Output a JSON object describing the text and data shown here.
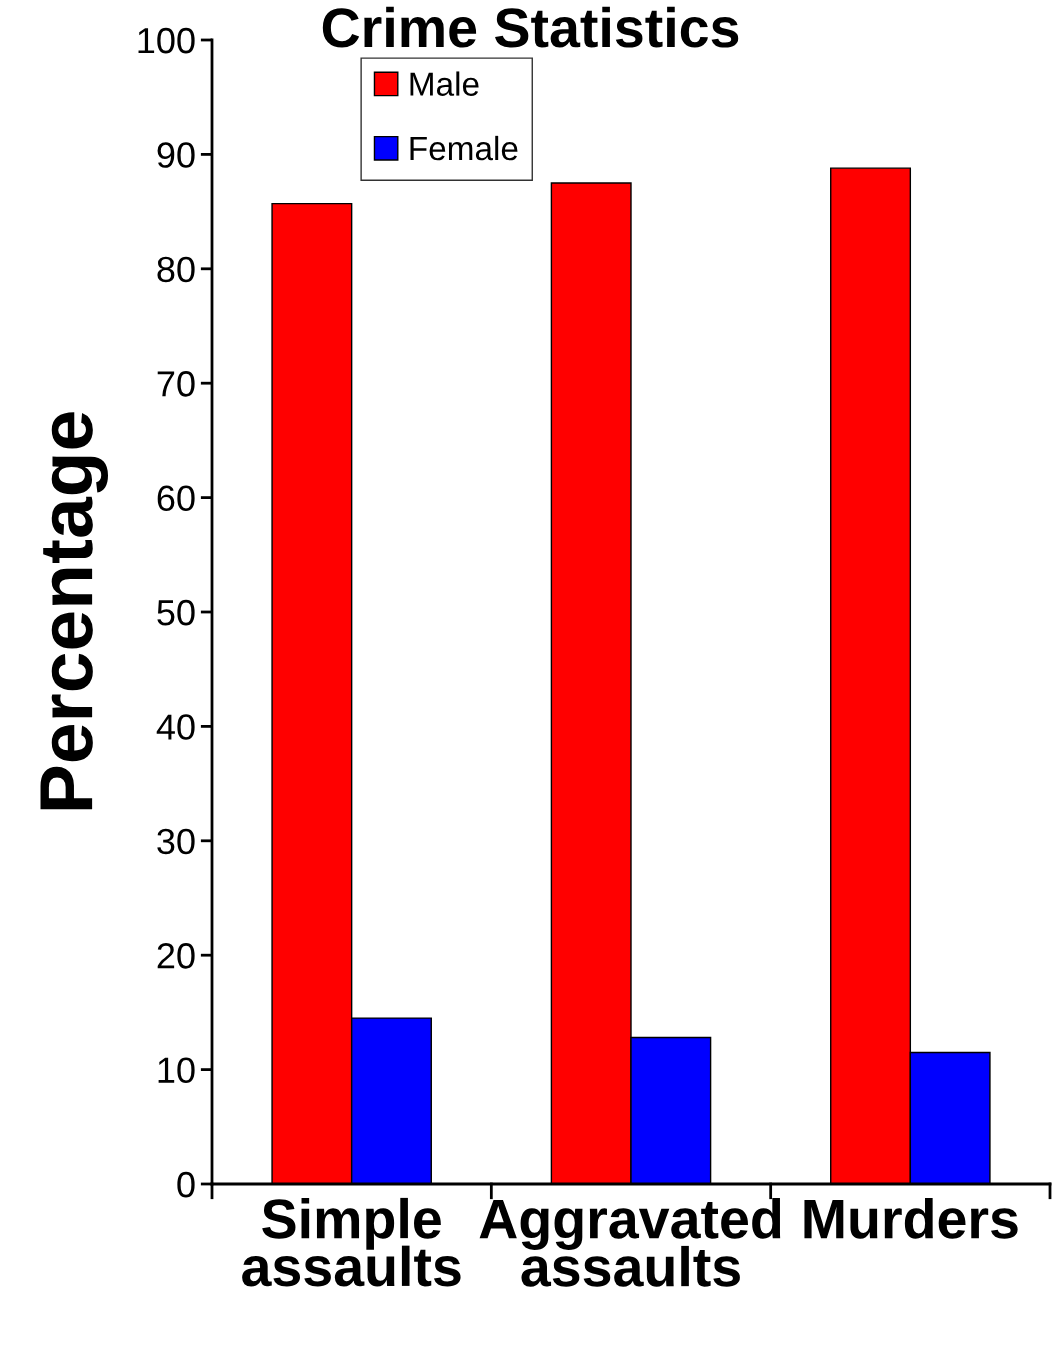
{
  "chart_data": {
    "type": "bar",
    "title": "Crime Statistics",
    "ylabel": "Percentage",
    "categories": [
      "Simple\nassaults",
      "Aggravated\nassaults",
      "Murders"
    ],
    "series": [
      {
        "name": "Male",
        "color": "#ff0000",
        "values": [
          85.7,
          87.5,
          88.8
        ]
      },
      {
        "name": "Female",
        "color": "#0000ff",
        "values": [
          14.5,
          12.8,
          11.5
        ]
      }
    ],
    "ylim": [
      0,
      100
    ],
    "yticks": [
      0,
      10,
      20,
      30,
      40,
      50,
      60,
      70,
      80,
      90,
      100
    ],
    "grid": false,
    "legend": "top left"
  }
}
